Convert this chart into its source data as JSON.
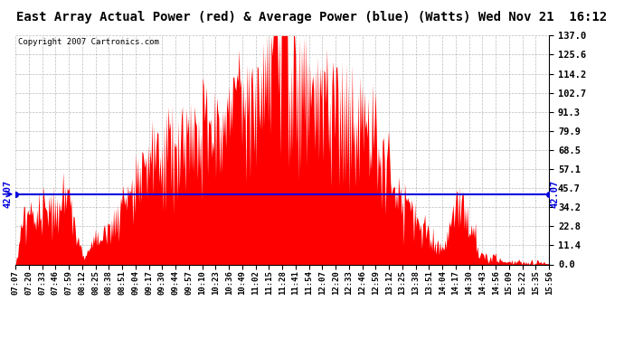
{
  "title": "East Array Actual Power (red) & Average Power (blue) (Watts) Wed Nov 21  16:12",
  "copyright": "Copyright 2007 Cartronics.com",
  "avg_value": 42.07,
  "ytick_values": [
    0.0,
    11.4,
    22.8,
    34.2,
    45.7,
    57.1,
    68.5,
    79.9,
    91.3,
    102.7,
    114.2,
    125.6,
    137.0
  ],
  "ylim_min": 0.0,
  "ylim_max": 137.0,
  "bg_color": "#ffffff",
  "title_bg": "#c8c8c8",
  "grid_color": "#aaaaaa",
  "bar_color": "#ff0000",
  "avg_line_color": "#0000dd",
  "xtick_labels": [
    "07:07",
    "07:20",
    "07:33",
    "07:46",
    "07:59",
    "08:12",
    "08:25",
    "08:38",
    "08:51",
    "09:04",
    "09:17",
    "09:30",
    "09:44",
    "09:57",
    "10:10",
    "10:23",
    "10:36",
    "10:49",
    "11:02",
    "11:15",
    "11:28",
    "11:41",
    "11:54",
    "12:07",
    "12:20",
    "12:33",
    "12:46",
    "12:59",
    "13:12",
    "13:25",
    "13:38",
    "13:51",
    "14:04",
    "14:17",
    "14:30",
    "14:43",
    "14:56",
    "15:09",
    "15:22",
    "15:35",
    "15:56"
  ]
}
